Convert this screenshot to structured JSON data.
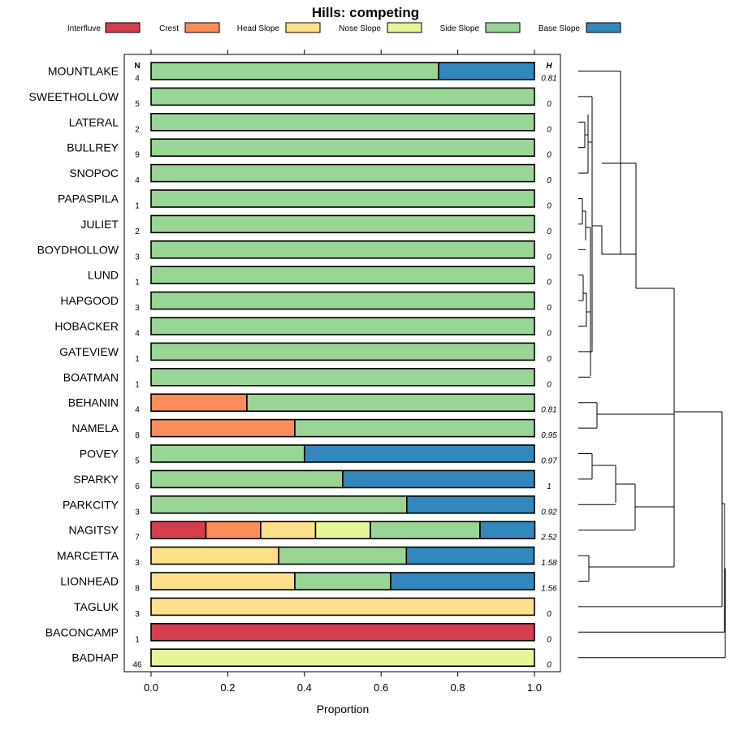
{
  "chart_data": {
    "type": "bar",
    "stacked": true,
    "orientation": "horizontal",
    "title": "Hills: competing",
    "xlabel": "Proportion",
    "ylabel": "",
    "xlim": [
      0,
      1
    ],
    "x_ticks": [
      "0.0",
      "0.2",
      "0.4",
      "0.6",
      "0.8",
      "1.0"
    ],
    "x_tick_values": [
      0,
      0.2,
      0.4,
      0.6,
      0.8,
      1.0
    ],
    "n_header": "N",
    "h_header": "H",
    "legend_position": "top",
    "legend": [
      {
        "name": "Interfluve",
        "color": "#d53e4f"
      },
      {
        "name": "Crest",
        "color": "#fc8d59"
      },
      {
        "name": "Head Slope",
        "color": "#fee08b"
      },
      {
        "name": "Nose Slope",
        "color": "#e6f598"
      },
      {
        "name": "Side Slope",
        "color": "#99d594"
      },
      {
        "name": "Base Slope",
        "color": "#3288bd"
      }
    ],
    "categories": [
      "MOUNTLAKE",
      "SWEETHOLLOW",
      "LATERAL",
      "BULLREY",
      "SNOPOC",
      "PAPASPILA",
      "JULIET",
      "BOYDHOLLOW",
      "LUND",
      "HAPGOOD",
      "HOBACKER",
      "GATEVIEW",
      "BOATMAN",
      "BEHANIN",
      "NAMELA",
      "POVEY",
      "SPARKY",
      "PARKCITY",
      "NAGITSY",
      "MARCETTA",
      "LIONHEAD",
      "TAGLUK",
      "BACONCAMP",
      "BADHAP"
    ],
    "n": [
      "4",
      "5",
      "2",
      "9",
      "4",
      "1",
      "2",
      "3",
      "1",
      "3",
      "4",
      "1",
      "1",
      "4",
      "8",
      "5",
      "6",
      "3",
      "7",
      "3",
      "8",
      "3",
      "1",
      "46"
    ],
    "h": [
      "0.81",
      "0",
      "0",
      "0",
      "0",
      "0",
      "0",
      "0",
      "0",
      "0",
      "0",
      "0",
      "0",
      "0.81",
      "0.95",
      "0.97",
      "1",
      "0.92",
      "2.52",
      "1.58",
      "1.56",
      "0",
      "0",
      "0"
    ],
    "series": [
      {
        "name": "Interfluve",
        "values": [
          0,
          0,
          0,
          0,
          0,
          0,
          0,
          0,
          0,
          0,
          0,
          0,
          0,
          0,
          0,
          0,
          0,
          0,
          0.143,
          0,
          0,
          0,
          1,
          0
        ]
      },
      {
        "name": "Crest",
        "values": [
          0,
          0,
          0,
          0,
          0,
          0,
          0,
          0,
          0,
          0,
          0,
          0,
          0,
          0.25,
          0.375,
          0,
          0,
          0,
          0.143,
          0,
          0,
          0,
          0,
          0
        ]
      },
      {
        "name": "Head Slope",
        "values": [
          0,
          0,
          0,
          0,
          0,
          0,
          0,
          0,
          0,
          0,
          0,
          0,
          0,
          0,
          0,
          0,
          0,
          0,
          0.143,
          0.333,
          0.375,
          1,
          0,
          0
        ]
      },
      {
        "name": "Nose Slope",
        "values": [
          0,
          0,
          0,
          0,
          0,
          0,
          0,
          0,
          0,
          0,
          0,
          0,
          0,
          0,
          0,
          0,
          0,
          0,
          0.143,
          0,
          0,
          0,
          0,
          1
        ]
      },
      {
        "name": "Side Slope",
        "values": [
          0.75,
          1,
          1,
          1,
          1,
          1,
          1,
          1,
          1,
          1,
          1,
          1,
          1,
          0.75,
          0.625,
          0.4,
          0.5,
          0.667,
          0.286,
          0.333,
          0.25,
          0,
          0,
          0
        ]
      },
      {
        "name": "Base Slope",
        "values": [
          0.25,
          0,
          0,
          0,
          0,
          0,
          0,
          0,
          0,
          0,
          0,
          0,
          0,
          0,
          0,
          0.6,
          0.5,
          0.333,
          0.143,
          0.333,
          0.375,
          0,
          0,
          0
        ]
      }
    ],
    "dendrogram": "hierarchical clustering of rows by slope-position proportions"
  }
}
